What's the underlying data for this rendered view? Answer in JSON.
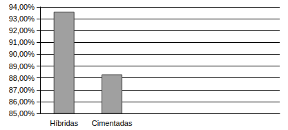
{
  "chart_data": {
    "type": "bar",
    "categories": [
      "Híbridas",
      "Cimentadas",
      null,
      null,
      null
    ],
    "values": [
      93.6,
      88.3,
      null,
      null,
      null
    ],
    "color": "#a0a0a0",
    "ylim": [
      85,
      94
    ],
    "yticks": [
      {
        "value": 85,
        "label": "85,00%"
      },
      {
        "value": 86,
        "label": "86,00%"
      },
      {
        "value": 87,
        "label": "87,00%"
      },
      {
        "value": 88,
        "label": "88,00%"
      },
      {
        "value": 89,
        "label": "89,00%"
      },
      {
        "value": 90,
        "label": "90,00%"
      },
      {
        "value": 91,
        "label": "91,00%"
      },
      {
        "value": 92,
        "label": "92,00%"
      },
      {
        "value": 93,
        "label": "93,00%"
      },
      {
        "value": 94,
        "label": "94,00%"
      }
    ],
    "grid": true
  }
}
